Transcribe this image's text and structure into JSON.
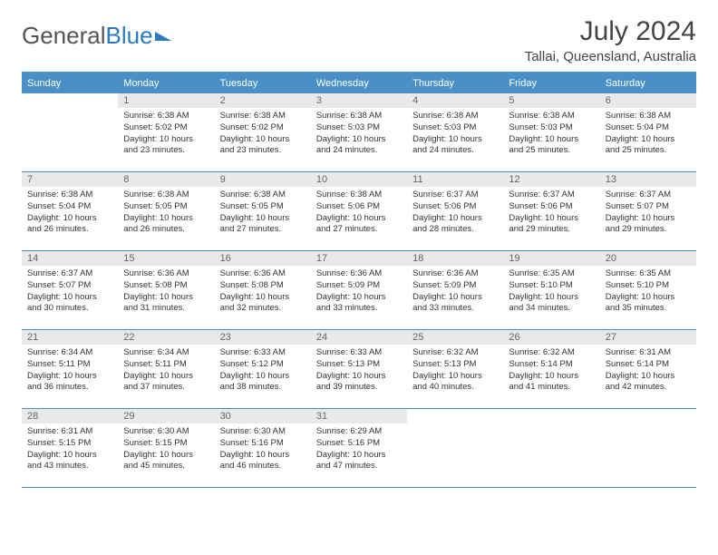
{
  "brand": {
    "part1": "General",
    "part2": "Blue"
  },
  "title": "July 2024",
  "location": "Tallai, Queensland, Australia",
  "colors": {
    "header_bg": "#4a90c8",
    "header_text": "#ffffff",
    "daynum_bg": "#e9e9e9",
    "border": "#4a90c8",
    "text": "#333333"
  },
  "day_names": [
    "Sunday",
    "Monday",
    "Tuesday",
    "Wednesday",
    "Thursday",
    "Friday",
    "Saturday"
  ],
  "weeks": [
    [
      {
        "n": "",
        "empty": true
      },
      {
        "n": "1",
        "sunrise": "6:38 AM",
        "sunset": "5:02 PM",
        "dl_h": "10",
        "dl_m": "23"
      },
      {
        "n": "2",
        "sunrise": "6:38 AM",
        "sunset": "5:02 PM",
        "dl_h": "10",
        "dl_m": "23"
      },
      {
        "n": "3",
        "sunrise": "6:38 AM",
        "sunset": "5:03 PM",
        "dl_h": "10",
        "dl_m": "24"
      },
      {
        "n": "4",
        "sunrise": "6:38 AM",
        "sunset": "5:03 PM",
        "dl_h": "10",
        "dl_m": "24"
      },
      {
        "n": "5",
        "sunrise": "6:38 AM",
        "sunset": "5:03 PM",
        "dl_h": "10",
        "dl_m": "25"
      },
      {
        "n": "6",
        "sunrise": "6:38 AM",
        "sunset": "5:04 PM",
        "dl_h": "10",
        "dl_m": "25"
      }
    ],
    [
      {
        "n": "7",
        "sunrise": "6:38 AM",
        "sunset": "5:04 PM",
        "dl_h": "10",
        "dl_m": "26"
      },
      {
        "n": "8",
        "sunrise": "6:38 AM",
        "sunset": "5:05 PM",
        "dl_h": "10",
        "dl_m": "26"
      },
      {
        "n": "9",
        "sunrise": "6:38 AM",
        "sunset": "5:05 PM",
        "dl_h": "10",
        "dl_m": "27"
      },
      {
        "n": "10",
        "sunrise": "6:38 AM",
        "sunset": "5:06 PM",
        "dl_h": "10",
        "dl_m": "27"
      },
      {
        "n": "11",
        "sunrise": "6:37 AM",
        "sunset": "5:06 PM",
        "dl_h": "10",
        "dl_m": "28"
      },
      {
        "n": "12",
        "sunrise": "6:37 AM",
        "sunset": "5:06 PM",
        "dl_h": "10",
        "dl_m": "29"
      },
      {
        "n": "13",
        "sunrise": "6:37 AM",
        "sunset": "5:07 PM",
        "dl_h": "10",
        "dl_m": "29"
      }
    ],
    [
      {
        "n": "14",
        "sunrise": "6:37 AM",
        "sunset": "5:07 PM",
        "dl_h": "10",
        "dl_m": "30"
      },
      {
        "n": "15",
        "sunrise": "6:36 AM",
        "sunset": "5:08 PM",
        "dl_h": "10",
        "dl_m": "31"
      },
      {
        "n": "16",
        "sunrise": "6:36 AM",
        "sunset": "5:08 PM",
        "dl_h": "10",
        "dl_m": "32"
      },
      {
        "n": "17",
        "sunrise": "6:36 AM",
        "sunset": "5:09 PM",
        "dl_h": "10",
        "dl_m": "33"
      },
      {
        "n": "18",
        "sunrise": "6:36 AM",
        "sunset": "5:09 PM",
        "dl_h": "10",
        "dl_m": "33"
      },
      {
        "n": "19",
        "sunrise": "6:35 AM",
        "sunset": "5:10 PM",
        "dl_h": "10",
        "dl_m": "34"
      },
      {
        "n": "20",
        "sunrise": "6:35 AM",
        "sunset": "5:10 PM",
        "dl_h": "10",
        "dl_m": "35"
      }
    ],
    [
      {
        "n": "21",
        "sunrise": "6:34 AM",
        "sunset": "5:11 PM",
        "dl_h": "10",
        "dl_m": "36"
      },
      {
        "n": "22",
        "sunrise": "6:34 AM",
        "sunset": "5:11 PM",
        "dl_h": "10",
        "dl_m": "37"
      },
      {
        "n": "23",
        "sunrise": "6:33 AM",
        "sunset": "5:12 PM",
        "dl_h": "10",
        "dl_m": "38"
      },
      {
        "n": "24",
        "sunrise": "6:33 AM",
        "sunset": "5:13 PM",
        "dl_h": "10",
        "dl_m": "39"
      },
      {
        "n": "25",
        "sunrise": "6:32 AM",
        "sunset": "5:13 PM",
        "dl_h": "10",
        "dl_m": "40"
      },
      {
        "n": "26",
        "sunrise": "6:32 AM",
        "sunset": "5:14 PM",
        "dl_h": "10",
        "dl_m": "41"
      },
      {
        "n": "27",
        "sunrise": "6:31 AM",
        "sunset": "5:14 PM",
        "dl_h": "10",
        "dl_m": "42"
      }
    ],
    [
      {
        "n": "28",
        "sunrise": "6:31 AM",
        "sunset": "5:15 PM",
        "dl_h": "10",
        "dl_m": "43"
      },
      {
        "n": "29",
        "sunrise": "6:30 AM",
        "sunset": "5:15 PM",
        "dl_h": "10",
        "dl_m": "45"
      },
      {
        "n": "30",
        "sunrise": "6:30 AM",
        "sunset": "5:16 PM",
        "dl_h": "10",
        "dl_m": "46"
      },
      {
        "n": "31",
        "sunrise": "6:29 AM",
        "sunset": "5:16 PM",
        "dl_h": "10",
        "dl_m": "47"
      },
      {
        "n": "",
        "empty": true
      },
      {
        "n": "",
        "empty": true
      },
      {
        "n": "",
        "empty": true
      }
    ]
  ]
}
